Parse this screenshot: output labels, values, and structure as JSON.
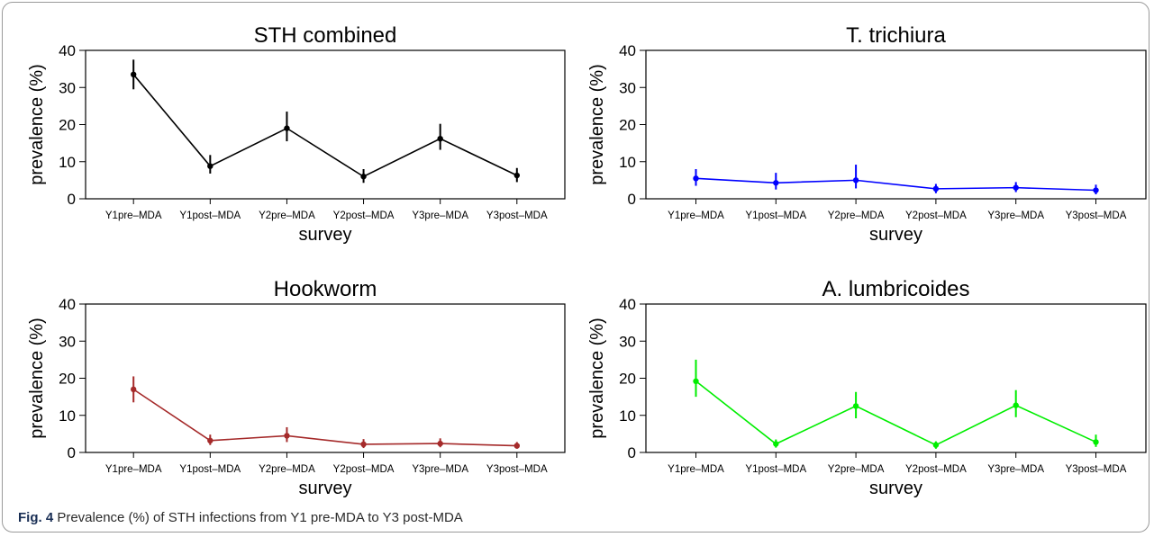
{
  "caption": {
    "label": "Fig. 4",
    "text": "Prevalence (%) of STH infections from Y1 pre-MDA to Y3 post-MDA"
  },
  "chart_data": [
    {
      "type": "line",
      "title": "STH combined",
      "xlabel": "survey",
      "ylabel": "prevalence (%)",
      "color": "#000000",
      "ylim": [
        0,
        40
      ],
      "yticks": [
        0,
        10,
        20,
        30,
        40
      ],
      "categories": [
        "Y1pre–MDA",
        "Y1post–MDA",
        "Y2pre–MDA",
        "Y2post–MDA",
        "Y3pre–MDA",
        "Y3post–MDA"
      ],
      "values": [
        33.5,
        8.8,
        19.0,
        6.0,
        16.2,
        6.3
      ],
      "lower": [
        29.5,
        6.8,
        15.5,
        4.3,
        13.2,
        4.5
      ],
      "upper": [
        37.5,
        11.8,
        23.5,
        8.0,
        20.2,
        8.3
      ]
    },
    {
      "type": "line",
      "title": "T. trichiura",
      "xlabel": "survey",
      "ylabel": "prevalence (%)",
      "color": "#0000ff",
      "ylim": [
        0,
        40
      ],
      "yticks": [
        0,
        10,
        20,
        30,
        40
      ],
      "categories": [
        "Y1pre–MDA",
        "Y1post–MDA",
        "Y2pre–MDA",
        "Y2post–MDA",
        "Y3pre–MDA",
        "Y3post–MDA"
      ],
      "values": [
        5.5,
        4.3,
        5.0,
        2.7,
        3.0,
        2.3
      ],
      "lower": [
        3.5,
        2.5,
        2.8,
        1.5,
        1.8,
        1.2
      ],
      "upper": [
        8.0,
        7.0,
        9.2,
        4.0,
        4.5,
        3.8
      ]
    },
    {
      "type": "line",
      "title": "Hookworm",
      "xlabel": "survey",
      "ylabel": "prevalence (%)",
      "color": "#a52a2a",
      "ylim": [
        0,
        40
      ],
      "yticks": [
        0,
        10,
        20,
        30,
        40
      ],
      "categories": [
        "Y1pre–MDA",
        "Y1post–MDA",
        "Y2pre–MDA",
        "Y2post–MDA",
        "Y3pre–MDA",
        "Y3post–MDA"
      ],
      "values": [
        17.0,
        3.2,
        4.5,
        2.2,
        2.4,
        1.8
      ],
      "lower": [
        13.5,
        2.0,
        2.8,
        1.2,
        1.4,
        1.0
      ],
      "upper": [
        20.5,
        4.8,
        6.8,
        3.6,
        3.8,
        2.8
      ]
    },
    {
      "type": "line",
      "title": "A. lumbricoides",
      "xlabel": "survey",
      "ylabel": "prevalence (%)",
      "color": "#00ee00",
      "ylim": [
        0,
        40
      ],
      "yticks": [
        0,
        10,
        20,
        30,
        40
      ],
      "categories": [
        "Y1pre–MDA",
        "Y1post–MDA",
        "Y2pre–MDA",
        "Y2post–MDA",
        "Y3pre–MDA",
        "Y3post–MDA"
      ],
      "values": [
        19.2,
        2.3,
        12.5,
        2.0,
        12.7,
        2.8
      ],
      "lower": [
        15.0,
        1.3,
        9.2,
        1.0,
        9.5,
        1.5
      ],
      "upper": [
        25.0,
        3.5,
        16.3,
        3.0,
        16.8,
        4.8
      ]
    }
  ]
}
